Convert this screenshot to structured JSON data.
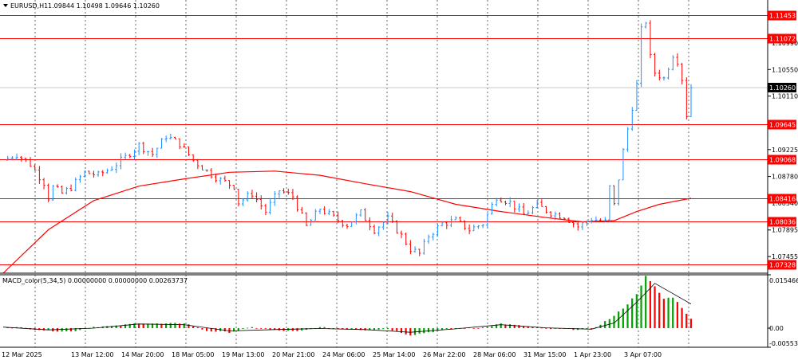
{
  "header": {
    "symbol_label": "EURUSD,H1",
    "ohlc": "1.09844 1.10498 1.09646 1.10260"
  },
  "indicator": {
    "label": "MACD_color(5,34,5) 0.00000000 0.00000000 0.00263737"
  },
  "colors": {
    "up_candle": "#1e90ff",
    "down_candle": "#ff0000",
    "level_line": "#ff0000",
    "ma_line": "#ff0000",
    "grid": "#000000",
    "hist_up": "#00a000",
    "hist_down": "#ff0000",
    "signal": "#000000"
  },
  "chart_data": [
    {
      "type": "candlestick",
      "symbol": "EURUSD",
      "timeframe": "H1",
      "ylim": [
        1.0718,
        1.117
      ],
      "y_ticks": [
        "1.10990",
        "1.10550",
        "1.10110",
        "1.09225",
        "1.08780",
        "1.08340",
        "1.07895",
        "1.07455"
      ],
      "x_ticks": [
        "12 Mar 2025",
        "13 Mar 12:00",
        "14 Mar 20:00",
        "18 Mar 05:00",
        "19 Mar 13:00",
        "20 Mar 21:00",
        "24 Mar 06:00",
        "25 Mar 14:00",
        "26 Mar 22:00",
        "28 Mar 06:00",
        "31 Mar 15:00",
        "1 Apr 23:00",
        "3 Apr 07:00"
      ],
      "levels": [
        {
          "label": "1.11453",
          "value": 1.11453
        },
        {
          "label": "1.11072",
          "value": 1.11072
        },
        {
          "label": "1.09645",
          "value": 1.09645
        },
        {
          "label": "1.09068",
          "value": 1.09068
        },
        {
          "label": "1.08416",
          "value": 1.08416
        },
        {
          "label": "1.08036",
          "value": 1.08036
        },
        {
          "label": "1.07328",
          "value": 1.07328
        }
      ],
      "current_price": {
        "label": "1.10260",
        "value": 1.1026
      },
      "close_path": [
        [
          0,
          1.0905
        ],
        [
          3,
          1.0915
        ],
        [
          6,
          1.0898
        ],
        [
          9,
          1.0868
        ],
        [
          10,
          1.0843
        ],
        [
          11,
          1.086
        ],
        [
          13,
          1.085
        ],
        [
          15,
          1.086
        ],
        [
          18,
          1.0885
        ],
        [
          21,
          1.088
        ],
        [
          24,
          1.0893
        ],
        [
          27,
          1.091
        ],
        [
          30,
          1.093
        ],
        [
          33,
          1.0915
        ],
        [
          36,
          1.0945
        ],
        [
          39,
          1.0932
        ],
        [
          42,
          1.0905
        ],
        [
          45,
          1.0887
        ],
        [
          48,
          1.0872
        ],
        [
          51,
          1.0862
        ],
        [
          52,
          1.0835
        ],
        [
          55,
          1.085
        ],
        [
          58,
          1.082
        ],
        [
          61,
          1.0855
        ],
        [
          64,
          1.0845
        ],
        [
          67,
          1.0795
        ],
        [
          70,
          1.0825
        ],
        [
          73,
          1.081
        ],
        [
          76,
          1.0798
        ],
        [
          79,
          1.0818
        ],
        [
          82,
          1.079
        ],
        [
          85,
          1.0808
        ],
        [
          88,
          1.078
        ],
        [
          90,
          1.0758
        ],
        [
          92,
          1.075
        ],
        [
          94,
          1.078
        ],
        [
          97,
          1.08
        ],
        [
          100,
          1.0805
        ],
        [
          103,
          1.079
        ],
        [
          106,
          1.08
        ],
        [
          109,
          1.0845
        ],
        [
          112,
          1.0835
        ],
        [
          115,
          1.0815
        ],
        [
          118,
          1.083
        ],
        [
          121,
          1.0818
        ],
        [
          124,
          1.0812
        ],
        [
          127,
          1.0795
        ],
        [
          130,
          1.0808
        ],
        [
          133,
          1.0803
        ],
        [
          134,
          1.086
        ],
        [
          135,
          1.083
        ],
        [
          137,
          1.092
        ],
        [
          140,
          1.103
        ],
        [
          141,
          1.112
        ],
        [
          142,
          1.1135
        ],
        [
          143,
          1.1075
        ],
        [
          144,
          1.105
        ],
        [
          146,
          1.104
        ],
        [
          148,
          1.108
        ],
        [
          149,
          1.107
        ],
        [
          150,
          1.104
        ],
        [
          151,
          1.098
        ],
        [
          152,
          1.1026
        ]
      ],
      "moving_average": [
        [
          0,
          1.0718
        ],
        [
          10,
          1.079
        ],
        [
          20,
          1.0838
        ],
        [
          30,
          1.0862
        ],
        [
          40,
          1.0874
        ],
        [
          50,
          1.0885
        ],
        [
          60,
          1.0887
        ],
        [
          70,
          1.088
        ],
        [
          80,
          1.0866
        ],
        [
          90,
          1.0853
        ],
        [
          100,
          1.0832
        ],
        [
          110,
          1.082
        ],
        [
          120,
          1.081
        ],
        [
          128,
          1.0803
        ],
        [
          135,
          1.0805
        ],
        [
          140,
          1.082
        ],
        [
          145,
          1.0832
        ],
        [
          152,
          1.0842
        ]
      ]
    },
    {
      "type": "histogram",
      "name": "MACD_color(5,34,5)",
      "ylim": [
        -0.0055345,
        0.0154669
      ],
      "y_ticks": [
        "0.0154669",
        "0.00",
        "-0.0055345"
      ],
      "histogram_path": [
        [
          0,
          0.0005
        ],
        [
          5,
          0.0
        ],
        [
          10,
          -0.0007
        ],
        [
          15,
          -0.001
        ],
        [
          20,
          0.0004
        ],
        [
          25,
          0.0006
        ],
        [
          30,
          0.0015
        ],
        [
          35,
          0.0012
        ],
        [
          40,
          0.0015
        ],
        [
          45,
          -0.0008
        ],
        [
          50,
          -0.0012
        ],
        [
          55,
          0.0002
        ],
        [
          60,
          -0.0006
        ],
        [
          65,
          -0.001
        ],
        [
          70,
          0.0002
        ],
        [
          75,
          -0.0002
        ],
        [
          80,
          -0.0005
        ],
        [
          85,
          -0.0002
        ],
        [
          90,
          -0.002
        ],
        [
          95,
          -0.001
        ],
        [
          100,
          0.0
        ],
        [
          105,
          0.0
        ],
        [
          110,
          0.0013
        ],
        [
          115,
          0.0006
        ],
        [
          120,
          -0.0002
        ],
        [
          125,
          -0.0003
        ],
        [
          130,
          -0.0004
        ],
        [
          135,
          0.0035
        ],
        [
          138,
          0.007
        ],
        [
          140,
          0.01
        ],
        [
          142,
          0.015
        ],
        [
          144,
          0.012
        ],
        [
          146,
          0.0085
        ],
        [
          148,
          0.009
        ],
        [
          150,
          0.006
        ],
        [
          152,
          0.0026
        ]
      ],
      "signal_path": [
        [
          0,
          0.0003
        ],
        [
          10,
          -0.0005
        ],
        [
          20,
          0.0
        ],
        [
          30,
          0.0012
        ],
        [
          40,
          0.001
        ],
        [
          50,
          -0.0008
        ],
        [
          60,
          -0.0004
        ],
        [
          70,
          -0.0001
        ],
        [
          80,
          -0.0004
        ],
        [
          90,
          -0.0012
        ],
        [
          100,
          -0.0002
        ],
        [
          110,
          0.001
        ],
        [
          120,
          0.0001
        ],
        [
          130,
          -0.0003
        ],
        [
          135,
          0.0015
        ],
        [
          140,
          0.0075
        ],
        [
          144,
          0.013
        ],
        [
          148,
          0.01
        ],
        [
          152,
          0.007
        ]
      ]
    }
  ]
}
